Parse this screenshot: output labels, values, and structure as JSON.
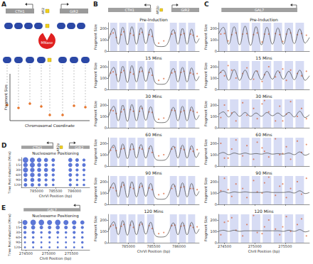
{
  "diagram": {
    "panel": "A",
    "genes": [
      "CTH1",
      "GIR2"
    ],
    "factor": "Aft2",
    "enzyme": "MNase",
    "y_label": "Fragment Size",
    "x_label": "Chromosomal Coordinate"
  },
  "chart_data": [
    {
      "panel": "B",
      "type": "scatter",
      "genes": [
        {
          "name": "CTH1",
          "start": 785450,
          "end": 784600
        },
        {
          "name": "GIR2",
          "start": 785850,
          "end": 786400
        }
      ],
      "factor": {
        "name": "Aft2p",
        "x": 785650
      },
      "x_label": "ChrVI Position (bp)",
      "y_label": "Fragment Size",
      "xlim": [
        784600,
        786400
      ],
      "xticks": [
        785000,
        785500,
        786000
      ],
      "ylim": [
        0,
        250
      ],
      "yticks": [
        0,
        100,
        200
      ],
      "nucleosomes": [
        [
          784640,
          784780
        ],
        [
          784820,
          784960
        ],
        [
          785000,
          785140
        ],
        [
          785180,
          785320
        ],
        [
          785370,
          785510
        ],
        [
          785820,
          785960
        ],
        [
          786000,
          786140
        ],
        [
          786180,
          786320
        ]
      ],
      "curve_x": [
        784600,
        784710,
        784800,
        784890,
        784980,
        785070,
        785160,
        785250,
        785345,
        785440,
        785540,
        785650,
        785760,
        785890,
        785980,
        786070,
        786160,
        786250,
        786340,
        786400
      ],
      "x": [
        784650,
        784700,
        784760,
        784860,
        784910,
        785040,
        785100,
        785220,
        785270,
        785410,
        785470,
        785600,
        785700,
        785860,
        785920,
        786040,
        786100,
        786230,
        786280,
        786360
      ],
      "rows": [
        {
          "title": "Pre-Induction",
          "curve": [
            90,
            200,
            60,
            210,
            55,
            215,
            60,
            205,
            65,
            195,
            50,
            40,
            55,
            190,
            60,
            200,
            60,
            195,
            70,
            110
          ],
          "values": [
            150,
            160,
            120,
            145,
            170,
            155,
            140,
            150,
            165,
            145,
            130,
            70,
            90,
            150,
            160,
            145,
            155,
            150,
            140,
            130
          ]
        },
        {
          "title": "15 Mins",
          "curve": [
            95,
            195,
            65,
            205,
            60,
            210,
            65,
            200,
            70,
            190,
            55,
            45,
            60,
            185,
            65,
            195,
            65,
            190,
            75,
            115
          ],
          "values": [
            145,
            155,
            130,
            150,
            165,
            150,
            135,
            155,
            160,
            150,
            125,
            80,
            95,
            145,
            155,
            150,
            160,
            145,
            135,
            140
          ]
        },
        {
          "title": "30 Mins",
          "curve": [
            90,
            190,
            60,
            200,
            55,
            205,
            60,
            195,
            65,
            185,
            55,
            45,
            55,
            180,
            60,
            190,
            60,
            185,
            70,
            110
          ],
          "values": [
            155,
            150,
            125,
            140,
            160,
            160,
            145,
            145,
            170,
            140,
            135,
            75,
            85,
            155,
            150,
            140,
            150,
            155,
            145,
            135
          ]
        },
        {
          "title": "60 Mins",
          "curve": [
            100,
            185,
            70,
            195,
            65,
            200,
            70,
            190,
            70,
            180,
            60,
            50,
            65,
            175,
            70,
            185,
            70,
            180,
            75,
            120
          ],
          "values": [
            140,
            165,
            135,
            150,
            155,
            145,
            150,
            160,
            150,
            155,
            120,
            90,
            100,
            150,
            165,
            155,
            145,
            150,
            130,
            145
          ]
        },
        {
          "title": "90 Mins",
          "curve": [
            95,
            190,
            65,
            200,
            60,
            200,
            65,
            190,
            70,
            185,
            55,
            45,
            60,
            180,
            65,
            190,
            65,
            185,
            75,
            115
          ],
          "values": [
            150,
            145,
            120,
            155,
            170,
            150,
            140,
            150,
            160,
            145,
            130,
            85,
            95,
            140,
            160,
            150,
            155,
            140,
            140,
            130
          ]
        },
        {
          "title": "120 Mins",
          "curve": [
            100,
            185,
            70,
            195,
            65,
            195,
            70,
            185,
            75,
            180,
            60,
            50,
            65,
            175,
            70,
            180,
            70,
            180,
            80,
            120
          ],
          "values": [
            145,
            155,
            130,
            145,
            160,
            155,
            135,
            155,
            165,
            150,
            125,
            80,
            90,
            150,
            155,
            145,
            150,
            150,
            135,
            140
          ]
        }
      ]
    },
    {
      "panel": "C",
      "type": "scatter",
      "genes": [
        {
          "name": "GAL7",
          "start": 275700,
          "end": 274450
        }
      ],
      "x_label": "ChrII Position (bp)",
      "y_label": "Fragment Size",
      "xlim": [
        274400,
        275900
      ],
      "xticks": [
        274500,
        275000,
        275500
      ],
      "ylim": [
        0,
        250
      ],
      "yticks": [
        0,
        100,
        200
      ],
      "nucleosomes": [
        [
          274410,
          274550
        ],
        [
          274590,
          274730
        ],
        [
          274770,
          274910
        ],
        [
          274950,
          275090
        ],
        [
          275130,
          275270
        ],
        [
          275310,
          275450
        ],
        [
          275490,
          275630
        ],
        [
          275670,
          275810
        ]
      ],
      "curve_x": [
        274400,
        274480,
        274570,
        274660,
        274750,
        274840,
        274930,
        275020,
        275110,
        275200,
        275290,
        275380,
        275470,
        275560,
        275650,
        275740,
        275830,
        275900
      ],
      "x": [
        274440,
        274500,
        274620,
        274690,
        274800,
        274870,
        274980,
        275040,
        275160,
        275230,
        275340,
        275410,
        275520,
        275590,
        275700,
        275770,
        275850,
        274560,
        275120,
        275460
      ],
      "rows": [
        {
          "title": "Pre-Induction",
          "curve": [
            150,
            210,
            60,
            215,
            55,
            220,
            50,
            215,
            55,
            210,
            60,
            205,
            60,
            200,
            65,
            195,
            70,
            120
          ],
          "values": [
            150,
            155,
            145,
            160,
            150,
            155,
            145,
            160,
            150,
            150,
            155,
            145,
            150,
            160,
            145,
            155,
            140,
            90,
            80,
            85
          ]
        },
        {
          "title": "15 Mins",
          "curve": [
            130,
            170,
            80,
            175,
            80,
            170,
            85,
            165,
            85,
            160,
            90,
            165,
            90,
            160,
            85,
            170,
            80,
            120
          ],
          "values": [
            150,
            120,
            170,
            100,
            140,
            190,
            90,
            160,
            130,
            200,
            110,
            150,
            80,
            170,
            140,
            120,
            160,
            210,
            70,
            180
          ]
        },
        {
          "title": "30 Mins",
          "curve": [
            115,
            140,
            95,
            140,
            100,
            135,
            100,
            130,
            100,
            135,
            105,
            130,
            100,
            135,
            95,
            145,
            90,
            115
          ],
          "values": [
            90,
            200,
            130,
            60,
            220,
            110,
            170,
            80,
            240,
            140,
            60,
            190,
            120,
            230,
            100,
            170,
            80,
            150,
            210,
            60
          ]
        },
        {
          "title": "60 Mins",
          "curve": [
            105,
            120,
            100,
            115,
            105,
            115,
            105,
            110,
            105,
            115,
            105,
            110,
            105,
            115,
            100,
            125,
            95,
            110
          ],
          "values": [
            200,
            70,
            150,
            230,
            90,
            180,
            60,
            210,
            130,
            80,
            240,
            100,
            170,
            60,
            220,
            120,
            190,
            70,
            160,
            110
          ]
        },
        {
          "title": "90 Mins",
          "curve": [
            100,
            115,
            100,
            110,
            105,
            110,
            105,
            105,
            105,
            110,
            105,
            105,
            105,
            110,
            100,
            120,
            95,
            105
          ],
          "values": [
            120,
            230,
            70,
            180,
            140,
            60,
            210,
            110,
            190,
            240,
            80,
            160,
            60,
            140,
            200,
            90,
            230,
            130,
            100,
            180
          ]
        },
        {
          "title": "120 Mins",
          "curve": [
            100,
            110,
            100,
            110,
            100,
            105,
            105,
            105,
            105,
            105,
            105,
            105,
            100,
            110,
            100,
            115,
            95,
            105
          ],
          "values": [
            70,
            180,
            220,
            110,
            60,
            160,
            240,
            90,
            140,
            200,
            120,
            70,
            230,
            100,
            160,
            210,
            60,
            190,
            80,
            140
          ]
        }
      ]
    },
    {
      "panel": "D",
      "type": "bubble",
      "title": "Nucleosome Positioning",
      "genes": [
        {
          "name": "CTH1",
          "start": 785450,
          "end": 784600
        },
        {
          "name": "GIR2",
          "start": 785850,
          "end": 786400
        }
      ],
      "factor": {
        "name": "Aft2p",
        "x": 785650
      },
      "x_label": "ChrVI Position (bp)",
      "y_label": "Time Post-Induction (Mins)",
      "xlim": [
        784600,
        786400
      ],
      "xticks": [
        785000,
        785500,
        786000
      ],
      "times": [
        0,
        15,
        30,
        60,
        90,
        120
      ],
      "x": [
        784710,
        784890,
        785070,
        785250,
        785440,
        785890,
        786070,
        786250
      ],
      "sizes": [
        [
          0.9,
          0.8,
          0.7,
          0.6,
          0.5,
          0.6,
          0.5,
          0.4
        ],
        [
          0.7,
          0.8,
          0.6,
          0.5,
          0.4,
          0.6,
          0.5,
          0.5
        ],
        [
          0.8,
          0.7,
          0.6,
          0.6,
          0.5,
          0.5,
          0.4,
          0.4
        ],
        [
          0.6,
          0.7,
          0.5,
          0.5,
          0.4,
          0.5,
          0.4,
          0.3
        ],
        [
          0.5,
          0.6,
          0.5,
          0.4,
          0.4,
          0.4,
          0.3,
          0.3
        ],
        [
          0.5,
          0.5,
          0.4,
          0.4,
          0.3,
          0.4,
          0.3,
          0.3
        ]
      ]
    },
    {
      "panel": "E",
      "type": "bubble",
      "title": "Nucleosome Positioning",
      "genes": [
        {
          "name": "GAL7",
          "start": 275700,
          "end": 274450
        }
      ],
      "x_label": "ChrII Position (bp)",
      "y_label": "Time Post-Induction (Mins)",
      "xlim": [
        274400,
        275900
      ],
      "xticks": [
        274500,
        275000,
        275500
      ],
      "times": [
        0,
        15,
        30,
        60,
        90,
        120
      ],
      "x": [
        274480,
        274660,
        274840,
        275020,
        275200,
        275380,
        275560,
        275740
      ],
      "sizes": [
        [
          0.8,
          0.9,
          0.9,
          0.8,
          0.9,
          0.8,
          0.7,
          0.6
        ],
        [
          0.5,
          0.6,
          0.5,
          0.5,
          0.6,
          0.5,
          0.5,
          0.4
        ],
        [
          0.4,
          0.4,
          0.3,
          0.4,
          0.4,
          0.3,
          0.4,
          0.3
        ],
        [
          0.3,
          0.3,
          0.2,
          0.3,
          0.2,
          0.2,
          0.3,
          0.3
        ],
        [
          0.2,
          0.3,
          0.2,
          0.2,
          0.2,
          0.2,
          0.2,
          0.3
        ],
        [
          0.2,
          0.2,
          0.2,
          0.2,
          0.2,
          0.2,
          0.2,
          0.2
        ]
      ]
    }
  ]
}
